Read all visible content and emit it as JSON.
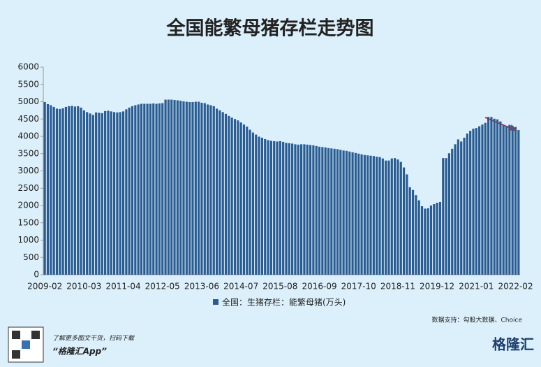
{
  "chart_data": {
    "type": "bar",
    "title": "全国能繁母猪存栏走势图",
    "categories": [
      "2009-02",
      null,
      null,
      null,
      null,
      null,
      null,
      null,
      null,
      null,
      null,
      null,
      null,
      "2010-03",
      null,
      null,
      null,
      null,
      null,
      null,
      null,
      null,
      null,
      null,
      null,
      null,
      "2011-04",
      null,
      null,
      null,
      null,
      null,
      null,
      null,
      null,
      null,
      null,
      null,
      null,
      "2012-05",
      null,
      null,
      null,
      null,
      null,
      null,
      null,
      null,
      null,
      null,
      null,
      null,
      "2013-06",
      null,
      null,
      null,
      null,
      null,
      null,
      null,
      null,
      null,
      null,
      null,
      null,
      "2014-07",
      null,
      null,
      null,
      null,
      null,
      null,
      null,
      null,
      null,
      null,
      null,
      null,
      "2015-08",
      null,
      null,
      null,
      null,
      null,
      null,
      null,
      null,
      null,
      null,
      null,
      null,
      "2016-09",
      null,
      null,
      null,
      null,
      null,
      null,
      null,
      null,
      null,
      null,
      null,
      null,
      "2017-10",
      null,
      null,
      null,
      null,
      null,
      null,
      null,
      null,
      null,
      null,
      null,
      null,
      "2018-11",
      null,
      null,
      null,
      null,
      null,
      null,
      null,
      null,
      null,
      null,
      null,
      null,
      "2019-12",
      null,
      null,
      null,
      null,
      null,
      null,
      null,
      null,
      null,
      null,
      null,
      null,
      "2021-01",
      null,
      null,
      null,
      null,
      null,
      null,
      null,
      null,
      null,
      null,
      null,
      null,
      "2022-02",
      null
    ],
    "series": [
      {
        "name": "全国：生猪存栏：能繁母猪(万头)",
        "color": "#2b5c91",
        "values": [
          4990,
          4930,
          4900,
          4850,
          4800,
          4790,
          4810,
          4850,
          4870,
          4880,
          4860,
          4870,
          4830,
          4750,
          4700,
          4660,
          4620,
          4690,
          4680,
          4670,
          4730,
          4740,
          4720,
          4700,
          4690,
          4700,
          4720,
          4780,
          4830,
          4870,
          4900,
          4920,
          4940,
          4940,
          4940,
          4940,
          4950,
          4940,
          4950,
          4960,
          5060,
          5060,
          5060,
          5050,
          5040,
          5030,
          5010,
          5000,
          4990,
          4990,
          5000,
          5000,
          4970,
          4960,
          4920,
          4900,
          4870,
          4800,
          4750,
          4700,
          4650,
          4590,
          4540,
          4500,
          4460,
          4400,
          4340,
          4280,
          4190,
          4110,
          4050,
          3990,
          3960,
          3920,
          3890,
          3870,
          3860,
          3850,
          3860,
          3840,
          3810,
          3800,
          3790,
          3770,
          3760,
          3770,
          3770,
          3760,
          3750,
          3740,
          3720,
          3700,
          3690,
          3680,
          3660,
          3650,
          3640,
          3630,
          3610,
          3590,
          3580,
          3560,
          3540,
          3520,
          3500,
          3480,
          3460,
          3450,
          3440,
          3430,
          3410,
          3400,
          3360,
          3300,
          3300,
          3360,
          3370,
          3330,
          3260,
          3100,
          2900,
          2530,
          2450,
          2300,
          2150,
          1980,
          1910,
          1920,
          2000,
          2040,
          2080,
          2100,
          3370,
          3370,
          3510,
          3640,
          3770,
          3910,
          3850,
          3960,
          4080,
          4160,
          4220,
          4240,
          4290,
          4340,
          4390,
          4560,
          4560,
          4510,
          4490,
          4430,
          4330,
          4300,
          4330,
          4300,
          4270,
          4180
        ]
      }
    ],
    "ylim": [
      0,
      6000
    ],
    "yticks": [
      0,
      500,
      1000,
      1500,
      2000,
      2500,
      3000,
      3500,
      4000,
      4500,
      5000,
      5500,
      6000
    ],
    "grid": false,
    "legend": "bottom",
    "source": "数据支持：勾股大数据、Choice"
  },
  "footer": {
    "note": "了解更多图文干货，扫码下载",
    "app": "“格隆汇App”",
    "logo": "格隆汇"
  }
}
